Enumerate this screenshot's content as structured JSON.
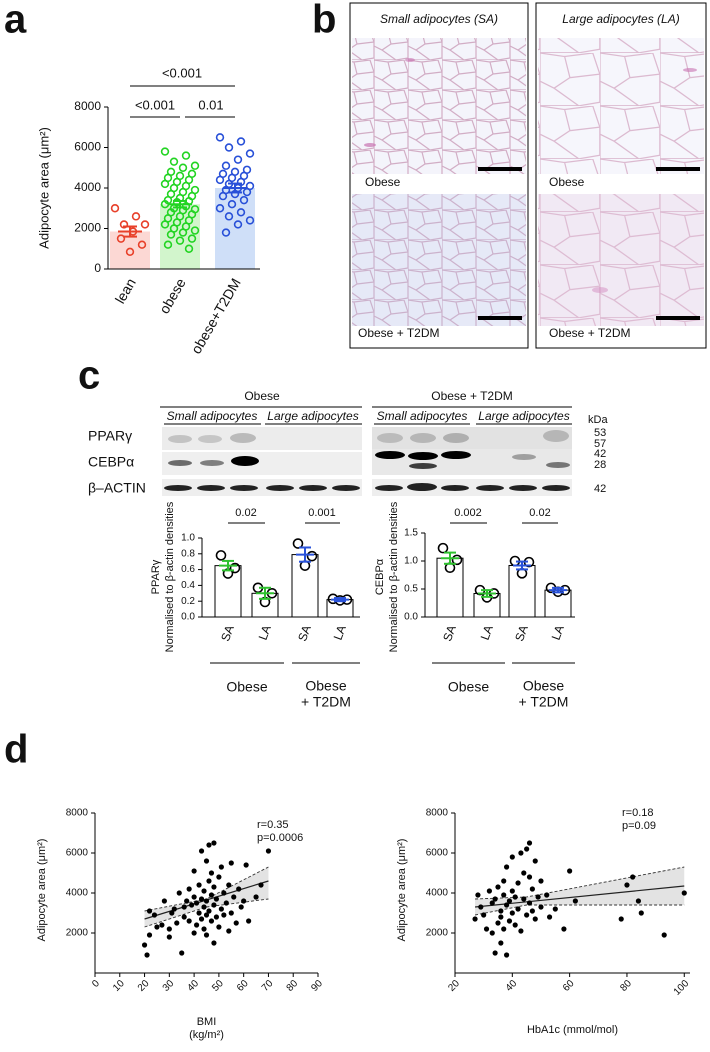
{
  "panel_labels": [
    "a",
    "b",
    "c",
    "d"
  ],
  "histology": {
    "columns": [
      "Small adipocytes (SA)",
      "Large adipocytes (LA)"
    ],
    "rows": [
      "Obese",
      "Obese + T2DM"
    ]
  },
  "western_blot": {
    "groups": [
      "Obese",
      "Obese + T2DM"
    ],
    "subgroups": [
      "Small adipocytes",
      "Large adipocytes"
    ],
    "proteins": [
      "PPARγ",
      "CEBPα",
      "β–ACTIN"
    ],
    "kda_header": "kDa",
    "kda_markers": [
      "53",
      "57",
      "42",
      "28",
      "42"
    ]
  },
  "chart_data": [
    {
      "type": "bar",
      "ylabel": "Adipocyte area (μm²)",
      "categories": [
        "lean",
        "obese",
        "obese+T2DM"
      ],
      "values": [
        1850,
        3200,
        4000
      ],
      "errors": [
        250,
        160,
        220
      ],
      "points": [
        [
          3000,
          2600,
          2200,
          2200,
          1850,
          1500,
          1200,
          850
        ],
        [
          5800,
          5600,
          5300,
          5100,
          5000,
          4800,
          4700,
          4600,
          4500,
          4400,
          4300,
          4200,
          4100,
          4000,
          3900,
          3800,
          3700,
          3600,
          3500,
          3400,
          3350,
          3300,
          3200,
          3100,
          3000,
          2950,
          2900,
          2800,
          2700,
          2600,
          2500,
          2400,
          2300,
          2200,
          2100,
          2000,
          1900,
          1800,
          1700,
          1500,
          1400,
          1200,
          1000
        ],
        [
          6500,
          6300,
          6000,
          5700,
          5400,
          5100,
          4900,
          4800,
          4700,
          4600,
          4500,
          4400,
          4300,
          4200,
          4100,
          4000,
          3900,
          3800,
          3700,
          3600,
          3400,
          3200,
          3000,
          2800,
          2600,
          2400,
          2200,
          1800
        ]
      ],
      "bar_colors": [
        "#fcd8d4",
        "#d2f5cc",
        "#cfdff8"
      ],
      "point_colors": [
        "#e8402a",
        "#22d422",
        "#2850d8"
      ],
      "ylim": [
        0,
        8000
      ],
      "yticks": [
        0,
        2000,
        4000,
        6000,
        8000
      ],
      "annotations": [
        "<0.001",
        "<0.001",
        "0.01"
      ]
    },
    {
      "type": "bar",
      "ylabel": [
        "PPARγ",
        "Normalised to β-actin densities"
      ],
      "categories": [
        "SA",
        "LA",
        "SA",
        "LA"
      ],
      "values": [
        0.65,
        0.3,
        0.79,
        0.22
      ],
      "errors": [
        0.06,
        0.07,
        0.09,
        0.02
      ],
      "points": [
        [
          0.78,
          0.62,
          0.55
        ],
        [
          0.37,
          0.3,
          0.19
        ],
        [
          0.93,
          0.77,
          0.65
        ],
        [
          0.23,
          0.22,
          0.21
        ]
      ],
      "bar_color": "#ffffff",
      "edge_color": "#000000",
      "point_color": "#000000",
      "error_colors": [
        "#2fc12f",
        "#2fc12f",
        "#2952d9",
        "#2952d9"
      ],
      "ylim": [
        0,
        1
      ],
      "yticks": [
        {
          "value": 0,
          "label": "0.0"
        },
        0.2,
        0.4,
        0.6,
        0.8,
        {
          "value": 1,
          "label": "1.0"
        }
      ],
      "annotations": [
        "0.02",
        "0.001"
      ],
      "groups": [
        [
          "Obese"
        ],
        [
          "Obese",
          "+ T2DM"
        ]
      ]
    },
    {
      "type": "bar",
      "ylabel": [
        "CEBPα",
        "Normalised to β-actin densities"
      ],
      "categories": [
        "SA",
        "LA",
        "SA",
        "LA"
      ],
      "values": [
        1.05,
        0.42,
        0.92,
        0.48
      ],
      "errors": [
        0.1,
        0.06,
        0.07,
        0.04
      ],
      "points": [
        [
          1.23,
          1.02,
          0.88
        ],
        [
          0.48,
          0.42,
          0.35
        ],
        [
          1.0,
          0.98,
          0.78
        ],
        [
          0.52,
          0.48,
          0.45
        ]
      ],
      "bar_color": "#ffffff",
      "edge_color": "#000000",
      "point_color": "#000000",
      "error_colors": [
        "#2fc12f",
        "#2fc12f",
        "#2952d9",
        "#2952d9"
      ],
      "ylim": [
        0,
        1.5
      ],
      "yticks": [
        {
          "value": 0,
          "label": "0.0"
        },
        0.5,
        {
          "value": 1,
          "label": "1.0"
        },
        1.5
      ],
      "annotations": [
        "0.002",
        "0.02"
      ],
      "groups": [
        [
          "Obese"
        ],
        [
          "Obese",
          "+ T2DM"
        ]
      ]
    },
    {
      "type": "scatter",
      "ylabel": "Adipocyte area (μm²)",
      "xlabel": [
        "BMI",
        "(kg/m²)"
      ],
      "x": [
        20,
        21,
        22,
        24,
        25,
        27,
        30,
        30,
        31,
        32,
        33,
        34,
        35,
        36,
        36,
        37,
        38,
        38,
        39,
        40,
        40,
        40,
        41,
        41,
        42,
        42,
        43,
        43,
        43,
        44,
        44,
        44,
        45,
        45,
        45,
        45,
        46,
        46,
        46,
        47,
        47,
        47,
        48,
        48,
        48,
        48,
        49,
        49,
        50,
        50,
        51,
        51,
        52,
        52,
        53,
        54,
        54,
        55,
        55,
        56,
        57,
        58,
        59,
        60,
        61,
        62,
        65,
        67,
        70,
        22,
        28
      ],
      "y": [
        1400,
        900,
        1900,
        2900,
        2300,
        2400,
        1800,
        2200,
        3000,
        3200,
        2500,
        4000,
        1000,
        3300,
        2800,
        3600,
        2600,
        4200,
        3400,
        2000,
        3800,
        5100,
        2400,
        3500,
        3000,
        4400,
        2700,
        3700,
        6100,
        2200,
        3300,
        4100,
        1900,
        2900,
        3600,
        5600,
        3100,
        4600,
        6400,
        2600,
        3900,
        5000,
        1500,
        3400,
        4300,
        6500,
        2800,
        3700,
        2300,
        4800,
        3200,
        5300,
        2900,
        4000,
        3500,
        2100,
        4400,
        3000,
        5500,
        3800,
        2500,
        4200,
        3300,
        3600,
        5400,
        2600,
        3800,
        4400,
        6100,
        3100,
        3600
      ],
      "fit": {
        "x": [
          20,
          70
        ],
        "y": [
          2700,
          4600
        ]
      },
      "ci": {
        "x": [
          20,
          45,
          70
        ],
        "lower": [
          2300,
          3300,
          3700
        ],
        "upper": [
          3100,
          3700,
          5300
        ]
      },
      "xlim": [
        0,
        90
      ],
      "xticks": [
        0,
        10,
        20,
        30,
        40,
        50,
        60,
        70,
        80,
        90
      ],
      "ylim": [
        0,
        8000
      ],
      "yticks": [
        2000,
        4000,
        6000,
        8000
      ],
      "annotations": [
        "r=0.35",
        "p=0.0006"
      ]
    },
    {
      "type": "scatter",
      "ylabel": "Adipocyte area (μm²)",
      "xlabel": [
        "HbA1c  (mmol/mol)"
      ],
      "x": [
        27,
        28,
        29,
        30,
        31,
        32,
        33,
        33,
        34,
        34,
        35,
        35,
        36,
        36,
        36,
        37,
        37,
        37,
        38,
        38,
        38,
        39,
        39,
        40,
        40,
        40,
        41,
        41,
        42,
        42,
        43,
        43,
        44,
        44,
        45,
        45,
        46,
        46,
        46,
        47,
        47,
        48,
        48,
        49,
        50,
        50,
        52,
        53,
        55,
        58,
        60,
        62,
        78,
        80,
        82,
        84,
        85,
        93,
        100
      ],
      "y": [
        2700,
        3900,
        3300,
        2900,
        2200,
        4100,
        3500,
        2000,
        1000,
        3700,
        2500,
        4300,
        1500,
        3100,
        2800,
        3900,
        4600,
        2200,
        3400,
        5300,
        900,
        2600,
        3600,
        4100,
        3000,
        5800,
        2400,
        3800,
        4500,
        3200,
        6000,
        2100,
        3700,
        5000,
        2900,
        6200,
        3500,
        4800,
        6500,
        3100,
        4200,
        5600,
        2700,
        3800,
        3300,
        4600,
        3900,
        2800,
        3200,
        2200,
        5100,
        3600,
        2700,
        4400,
        4800,
        3600,
        3000,
        1900,
        4000
      ],
      "fit": {
        "x": [
          27,
          100
        ],
        "y": [
          3300,
          4350
        ]
      },
      "ci": {
        "x": [
          27,
          45,
          100
        ],
        "lower": [
          2900,
          3400,
          3400
        ],
        "upper": [
          3700,
          3800,
          5300
        ]
      },
      "xlim": [
        20,
        102
      ],
      "xticks": [
        20,
        40,
        60,
        80,
        100
      ],
      "ylim": [
        0,
        8000
      ],
      "yticks": [
        2000,
        4000,
        6000,
        8000
      ],
      "annotations": [
        "r=0.18",
        "p=0.09"
      ]
    }
  ]
}
